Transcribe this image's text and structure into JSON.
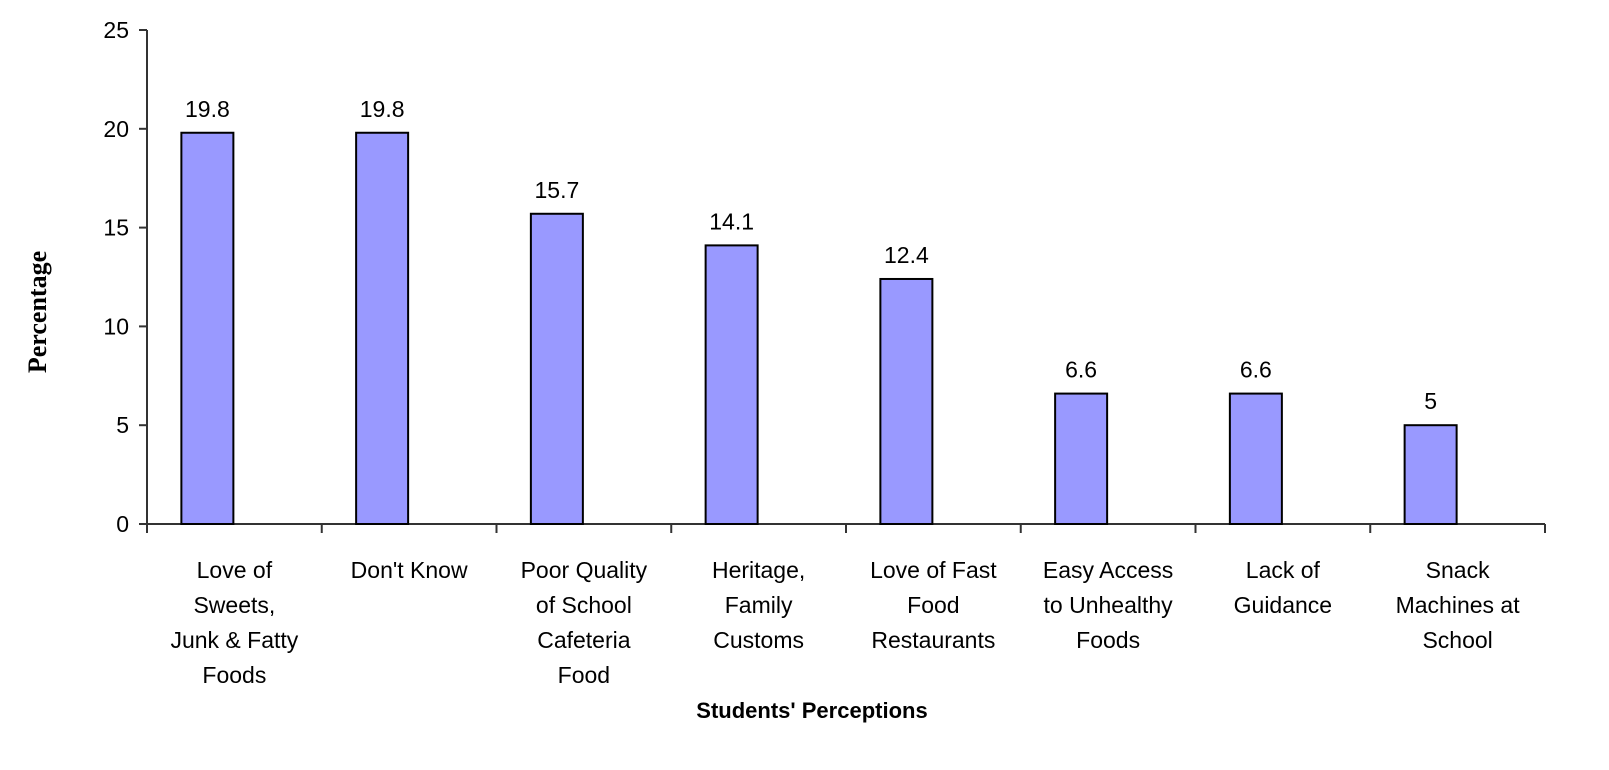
{
  "chart_data": {
    "type": "bar",
    "x_label": "Students' Perceptions",
    "y_label": "Percentage",
    "categories": [
      [
        "Love of",
        "Sweets,",
        "Junk & Fatty",
        "Foods"
      ],
      [
        "Don't Know"
      ],
      [
        "Poor Quality",
        "of School",
        "Cafeteria",
        "Food"
      ],
      [
        "Heritage,",
        "Family",
        "Customs"
      ],
      [
        "Love of Fast",
        "Food",
        "Restaurants"
      ],
      [
        "Easy Access",
        "to Unhealthy",
        "Foods"
      ],
      [
        "Lack of",
        "Guidance"
      ],
      [
        "Snack",
        "Machines at",
        "School"
      ]
    ],
    "values": [
      19.8,
      19.8,
      15.7,
      14.1,
      12.4,
      6.6,
      6.6,
      5
    ],
    "color": "#9999ff",
    "ylim": [
      0,
      25
    ],
    "yticks": [
      0,
      5,
      10,
      15,
      20,
      25
    ],
    "grid": false
  }
}
